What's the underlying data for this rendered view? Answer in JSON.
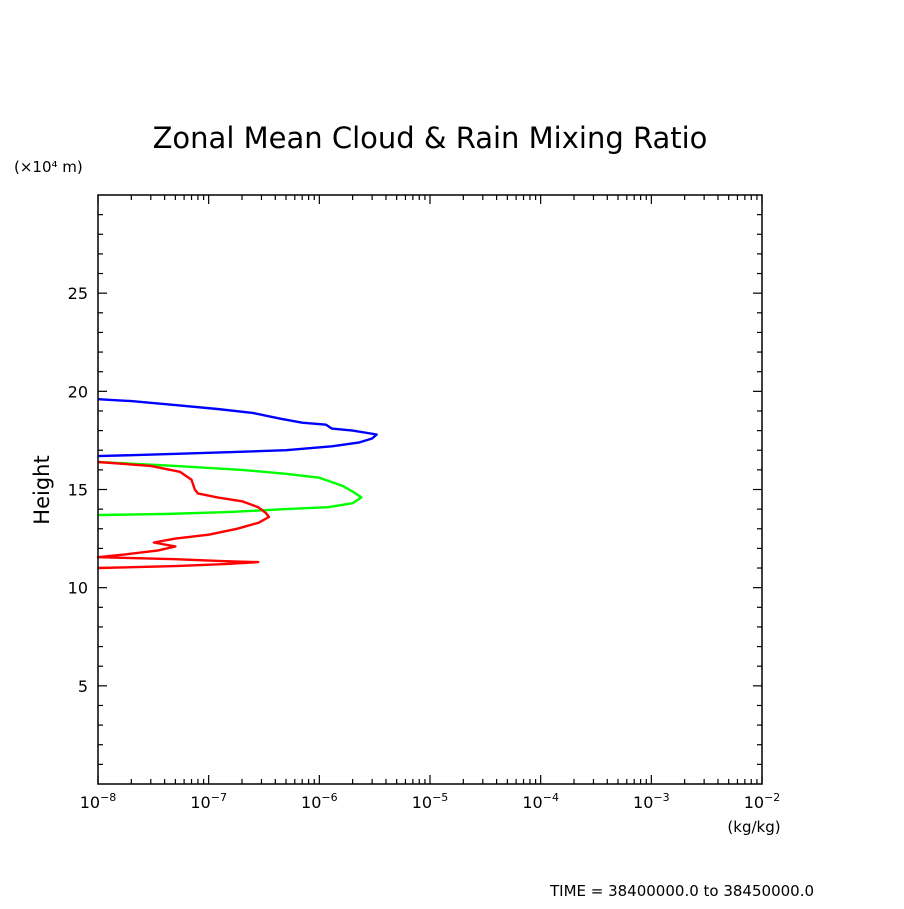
{
  "chart_data": {
    "type": "line",
    "title": "Zonal Mean Cloud & Rain Mixing Ratio",
    "ylabel": "Height",
    "y_unit_label": "(×10⁴ m)",
    "x_unit_label": "(kg/kg)",
    "footer": "TIME = 38400000.0 to 38450000.0",
    "xscale": "log",
    "xlim": [
      1e-08,
      0.01
    ],
    "ylim": [
      0,
      30
    ],
    "x_ticks": [
      {
        "value": 1e-08,
        "base": "10",
        "exp": "−8"
      },
      {
        "value": 1e-07,
        "base": "10",
        "exp": "−7"
      },
      {
        "value": 1e-06,
        "base": "10",
        "exp": "−6"
      },
      {
        "value": 1e-05,
        "base": "10",
        "exp": "−5"
      },
      {
        "value": 0.0001,
        "base": "10",
        "exp": "−4"
      },
      {
        "value": 0.001,
        "base": "10",
        "exp": "−3"
      },
      {
        "value": 0.01,
        "base": "10",
        "exp": "−2"
      }
    ],
    "y_ticks": [
      5,
      10,
      15,
      20,
      25
    ],
    "series": [
      {
        "name": "blue",
        "color": "#0000ff",
        "points": [
          [
            1e-08,
            19.6
          ],
          [
            2e-08,
            19.5
          ],
          [
            5e-08,
            19.3
          ],
          [
            1.2e-07,
            19.1
          ],
          [
            2.5e-07,
            18.9
          ],
          [
            4.5e-07,
            18.6
          ],
          [
            7e-07,
            18.4
          ],
          [
            1.15e-06,
            18.3
          ],
          [
            1.3e-06,
            18.1
          ],
          [
            2e-06,
            18.0
          ],
          [
            3.3e-06,
            17.8
          ],
          [
            3e-06,
            17.6
          ],
          [
            2.3e-06,
            17.4
          ],
          [
            1.3e-06,
            17.2
          ],
          [
            5e-07,
            17.0
          ],
          [
            1.5e-07,
            16.9
          ],
          [
            4e-08,
            16.8
          ],
          [
            1e-08,
            16.7
          ]
        ]
      },
      {
        "name": "green",
        "color": "#00ff00",
        "points": [
          [
            1e-08,
            16.4
          ],
          [
            5e-08,
            16.2
          ],
          [
            2e-07,
            16.0
          ],
          [
            5e-07,
            15.8
          ],
          [
            1e-06,
            15.6
          ],
          [
            1.6e-06,
            15.2
          ],
          [
            2e-06,
            14.9
          ],
          [
            2.4e-06,
            14.6
          ],
          [
            2e-06,
            14.3
          ],
          [
            1.2e-06,
            14.1
          ],
          [
            5e-07,
            14.0
          ],
          [
            1.5e-07,
            13.85
          ],
          [
            4e-08,
            13.75
          ],
          [
            1e-08,
            13.7
          ]
        ]
      },
      {
        "name": "red",
        "color": "#ff0000",
        "points": [
          [
            1e-08,
            16.4
          ],
          [
            3e-08,
            16.2
          ],
          [
            5.5e-08,
            15.9
          ],
          [
            7e-08,
            15.5
          ],
          [
            7.5e-08,
            15.0
          ],
          [
            8e-08,
            14.8
          ],
          [
            1.2e-07,
            14.6
          ],
          [
            2e-07,
            14.4
          ],
          [
            2.8e-07,
            14.1
          ],
          [
            3.3e-07,
            13.8
          ],
          [
            3.5e-07,
            13.6
          ],
          [
            2.8e-07,
            13.3
          ],
          [
            1.8e-07,
            13.0
          ],
          [
            1e-07,
            12.7
          ],
          [
            5e-08,
            12.5
          ],
          [
            3.2e-08,
            12.3
          ],
          [
            4e-08,
            12.2
          ],
          [
            5e-08,
            12.1
          ],
          [
            3.5e-08,
            11.9
          ],
          [
            1.8e-08,
            11.7
          ],
          [
            1e-08,
            11.55
          ],
          [
            5e-08,
            11.45
          ],
          [
            1.4e-07,
            11.35
          ],
          [
            2.8e-07,
            11.3
          ],
          [
            1.4e-07,
            11.2
          ],
          [
            5e-08,
            11.1
          ],
          [
            1e-08,
            11.0
          ]
        ]
      }
    ]
  }
}
